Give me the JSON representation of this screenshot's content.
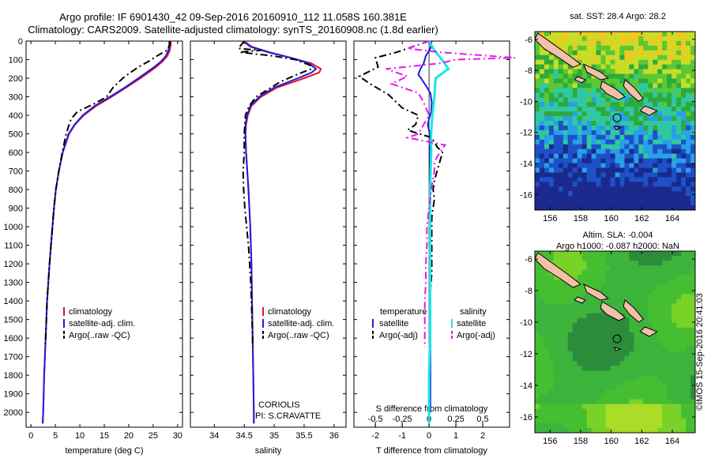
{
  "header": {
    "title1": "Argo profile: IF 6901430_42 09-Sep-2016 20160910_112 11.058S 160.381E",
    "title2": "Climatology: CARS2009. Satellite-adjusted climatology: synTS_20160908.nc (1.8d earlier)"
  },
  "map_sst": {
    "title": "sat. SST: 28.4 Argo: 28.2"
  },
  "map_sla": {
    "title1": "Altim. SLA: -0.004",
    "title2": "Argo h1000: -0.087 h2000: NaN"
  },
  "stamp": "©IMOS 15-Sep-2016 20:41:03",
  "colors": {
    "climatology": "#e8141c",
    "satellite": "#1e1edc",
    "argo": "#000000",
    "salinity_satellite": "#19e6e6",
    "salinity_argo": "#e619e6",
    "land": "#f2c0aa"
  },
  "chart_data": [
    {
      "type": "line",
      "xlabel": "temperature (deg C)",
      "ylim": [
        2080,
        0
      ],
      "xlim": [
        -1,
        31
      ],
      "xticks": [
        "0",
        "5",
        "10",
        "15",
        "20",
        "25",
        "30"
      ],
      "yticks": [
        "0",
        "100",
        "200",
        "300",
        "400",
        "500",
        "600",
        "700",
        "800",
        "900",
        "1000",
        "1100",
        "1200",
        "1300",
        "1400",
        "1500",
        "1600",
        "1700",
        "1800",
        "1900",
        "2000"
      ],
      "legend": [
        "climatology",
        "satellite-adj. clim.",
        "Argo(..raw -QC)"
      ],
      "series": [
        {
          "depth": [
            0,
            20,
            50,
            80,
            110,
            140,
            170,
            200,
            250,
            300,
            350,
            400,
            450,
            500,
            600,
            700,
            800,
            900,
            1000,
            1200,
            1400,
            1600,
            1800,
            2000,
            2060
          ],
          "values": [
            28.6,
            28.6,
            28.4,
            27.9,
            26.9,
            25.6,
            24.0,
            22.4,
            19.5,
            16.5,
            13.3,
            10.8,
            9.0,
            7.8,
            6.5,
            5.7,
            5.1,
            4.7,
            4.4,
            3.8,
            3.3,
            3.0,
            2.7,
            2.5,
            2.4
          ]
        },
        {
          "depth": [
            0,
            20,
            50,
            80,
            110,
            140,
            170,
            200,
            250,
            300,
            350,
            400,
            450,
            500,
            600,
            700,
            800,
            900,
            1000,
            1200,
            1400,
            1600,
            1800,
            2000,
            2060
          ],
          "values": [
            28.3,
            28.3,
            28.1,
            27.6,
            26.6,
            25.2,
            23.6,
            22.0,
            19.2,
            16.2,
            13.0,
            10.6,
            8.9,
            7.7,
            6.5,
            5.7,
            5.1,
            4.7,
            4.4,
            3.8,
            3.3,
            3.0,
            2.7,
            2.5,
            2.4
          ]
        },
        {
          "depth": [
            0,
            20,
            50,
            80,
            110,
            140,
            170,
            200,
            250,
            300,
            340,
            380,
            420,
            450,
            500,
            600,
            700,
            800,
            900,
            1000,
            1200,
            1400,
            1600,
            1650
          ],
          "values": [
            28.4,
            28.4,
            27.8,
            25.8,
            24.0,
            22.0,
            20.3,
            18.8,
            16.8,
            15.5,
            12.8,
            9.5,
            8.2,
            7.8,
            7.2,
            6.4,
            5.7,
            5.1,
            4.7,
            4.4,
            3.8,
            3.3,
            3.0,
            2.9
          ]
        }
      ]
    },
    {
      "type": "line",
      "xlabel": "salinity",
      "ylim": [
        2080,
        0
      ],
      "xlim": [
        33.6,
        36.2
      ],
      "xticks": [
        "34",
        "34.5",
        "35",
        "35.5",
        "36"
      ],
      "legend": [
        "climatology",
        "satellite-adj. clim.",
        "Argo(..raw -QC)"
      ],
      "annotations": [
        "CORIOLIS",
        "PI: S.CRAVATTE"
      ],
      "series": [
        {
          "depth": [
            0,
            30,
            60,
            90,
            120,
            150,
            170,
            200,
            250,
            300,
            350,
            400,
            450,
            500,
            600,
            700,
            800,
            1000,
            1200,
            1400,
            1600,
            1800,
            2000,
            2060
          ],
          "values": [
            34.5,
            34.62,
            34.92,
            35.28,
            35.62,
            35.78,
            35.75,
            35.5,
            35.05,
            34.78,
            34.62,
            34.56,
            34.53,
            34.52,
            34.53,
            34.55,
            34.57,
            34.6,
            34.62,
            34.63,
            34.64,
            34.65,
            34.66,
            34.66
          ]
        },
        {
          "depth": [
            0,
            30,
            60,
            90,
            120,
            150,
            170,
            200,
            250,
            300,
            350,
            400,
            450,
            500,
            600,
            700,
            800,
            1000,
            1200,
            1400,
            1600,
            1800,
            2000,
            2060
          ],
          "values": [
            34.48,
            34.6,
            34.9,
            35.28,
            35.58,
            35.7,
            35.62,
            35.4,
            35.0,
            34.75,
            34.6,
            34.55,
            34.52,
            34.52,
            34.53,
            34.55,
            34.57,
            34.6,
            34.62,
            34.63,
            34.64,
            34.65,
            34.66,
            34.66
          ]
        },
        {
          "depth": [
            0,
            40,
            50,
            60,
            80,
            100,
            130,
            150,
            180,
            220,
            260,
            300,
            350,
            400,
            500,
            600,
            700,
            800,
            900,
            1000,
            1100,
            1200,
            1300,
            1400,
            1500,
            1600,
            1650
          ],
          "values": [
            34.5,
            34.4,
            34.78,
            34.42,
            34.98,
            35.35,
            35.6,
            35.62,
            35.38,
            35.1,
            34.9,
            34.7,
            34.58,
            34.52,
            34.5,
            34.5,
            34.48,
            34.49,
            34.51,
            34.54,
            34.57,
            34.59,
            34.61,
            34.62,
            34.63,
            34.64,
            34.64
          ]
        }
      ]
    },
    {
      "type": "line",
      "xlabel": "T difference from climatology",
      "xlabel2": "S difference from climatology",
      "ylim": [
        2080,
        0
      ],
      "xlim": [
        -2.8,
        3.0
      ],
      "xticks": [
        "-2",
        "-1",
        "0",
        "1",
        "2"
      ],
      "xticks2": [
        "-0.5",
        "-0.25",
        "0",
        "0.25",
        "0.5"
      ],
      "legend": [
        "temperature",
        "satellite",
        "Argo(-adj)",
        "salinity",
        "satellite",
        "Argo(-adj)"
      ],
      "series": [
        {
          "depth": [
            0,
            40,
            80,
            120,
            150,
            180,
            200,
            240,
            280,
            330,
            380,
            420,
            450,
            480,
            520,
            560,
            600,
            700,
            900,
            1100,
            1300,
            1500,
            1800,
            2000
          ],
          "values": [
            0.1,
            0.05,
            -0.12,
            -0.2,
            -0.32,
            -0.4,
            -0.3,
            -0.12,
            0.05,
            0.1,
            0.08,
            0.0,
            -0.05,
            0.0,
            0.05,
            0.05,
            0.02,
            0.05,
            0.05,
            0.05,
            0.05,
            0.05,
            0.05,
            0.05
          ]
        },
        {
          "depth": [
            0,
            60,
            90,
            140,
            190,
            230,
            290,
            360,
            400,
            450,
            480,
            520,
            570,
            600,
            650,
            700,
            750,
            800,
            850,
            950,
            1050,
            1150,
            1250,
            1350,
            1450,
            1550,
            1650
          ],
          "values": [
            0,
            -1.2,
            -2.0,
            -1.9,
            -2.6,
            -2.2,
            -1.5,
            -1.0,
            -0.4,
            -0.5,
            -0.8,
            0.1,
            0.3,
            0.5,
            0.4,
            0.3,
            0.2,
            0.15,
            0.2,
            0.1,
            0.1,
            0.1,
            0.1,
            0.05,
            0.05,
            0.05,
            0.05
          ]
        },
        {
          "depth": [
            0,
            50,
            100,
            150,
            200,
            300,
            400,
            500,
            600,
            800,
            1000,
            1200,
            1400,
            1600,
            1800,
            2000,
            2060
          ],
          "values": [
            0,
            0.05,
            0.12,
            0.18,
            0.06,
            0.05,
            0.03,
            0.02,
            0.02,
            0.01,
            0.01,
            0.01,
            0.01,
            0.01,
            0.0,
            0.0,
            0.0
          ]
        },
        {
          "depth": [
            0,
            40,
            60,
            90,
            100,
            120,
            150,
            190,
            230,
            280,
            330,
            400,
            450,
            500,
            520,
            560,
            600,
            650,
            700,
            800,
            900,
            1000,
            1100,
            1200,
            1300,
            1400,
            1500,
            1600,
            1650
          ],
          "values": [
            0,
            -0.2,
            0.1,
            0.8,
            0.25,
            0.1,
            -0.4,
            -0.2,
            -0.35,
            -0.1,
            -0.05,
            0.0,
            -0.05,
            -0.1,
            -0.2,
            0.15,
            0.1,
            0.05,
            0.05,
            0.02,
            0.0,
            -0.02,
            -0.02,
            -0.03,
            -0.03,
            -0.04,
            -0.04,
            -0.04,
            -0.04
          ]
        }
      ]
    }
  ],
  "maps": {
    "x_ticks": [
      "156",
      "158",
      "160",
      "162",
      "164"
    ],
    "y_ticks": [
      "-6",
      "-8",
      "-10",
      "-12",
      "-14",
      "-16"
    ],
    "lon_range": [
      155,
      165.5
    ],
    "lat_range": [
      -17,
      -5.5
    ],
    "profile_position": {
      "lon": 160.381,
      "lat": -11.058
    }
  }
}
